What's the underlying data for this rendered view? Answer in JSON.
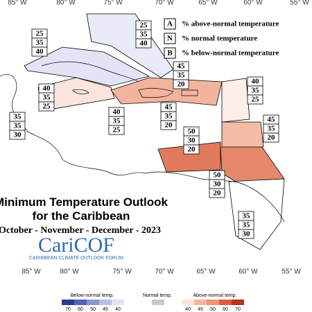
{
  "map": {
    "top_labels": [
      "85° W",
      "80° W",
      "75° W",
      "70° W",
      "65° W",
      "60° W",
      "55° W"
    ],
    "bottom_labels": [
      "85° W",
      "80° W",
      "75° W",
      "70° W",
      "65° W",
      "60° W",
      "55° W"
    ],
    "legend": [
      {
        "key": "A",
        "text": "% above-normal temperature"
      },
      {
        "key": "N",
        "text": "% normal temperature"
      },
      {
        "key": "B",
        "text": "% below-normal temperature"
      }
    ],
    "regions": [
      {
        "values": [
          25,
          35,
          40
        ]
      },
      {
        "values": [
          25,
          35,
          40
        ]
      },
      {
        "values": [
          45,
          35,
          20
        ]
      },
      {
        "values": [
          40,
          35,
          25
        ]
      },
      {
        "values": [
          40,
          35,
          25
        ]
      },
      {
        "values": [
          35,
          35,
          30
        ]
      },
      {
        "values": [
          40,
          35,
          25
        ]
      },
      {
        "values": [
          45,
          35,
          20
        ]
      },
      {
        "values": [
          45,
          35,
          20
        ]
      },
      {
        "values": [
          50,
          30,
          20
        ]
      },
      {
        "values": [
          50,
          30,
          20
        ]
      },
      {
        "values": [
          35,
          35,
          30
        ]
      }
    ],
    "title": [
      "Minimum Temperature Outlook",
      "for the Caribbean"
    ],
    "period": "October - November - December - 2023",
    "logo": "CariCOF",
    "logo_subtitle": "CARIBBEAN CLIMATE OUTLOOK FORUM",
    "scale": {
      "below_title": "Below-normal temp.",
      "normal_title": "Normal temp.",
      "above_title": "Above-normal temp.",
      "below_ticks": [
        70,
        60,
        50,
        45,
        40
      ],
      "above_ticks": [
        40,
        45,
        50,
        60,
        70
      ]
    }
  }
}
